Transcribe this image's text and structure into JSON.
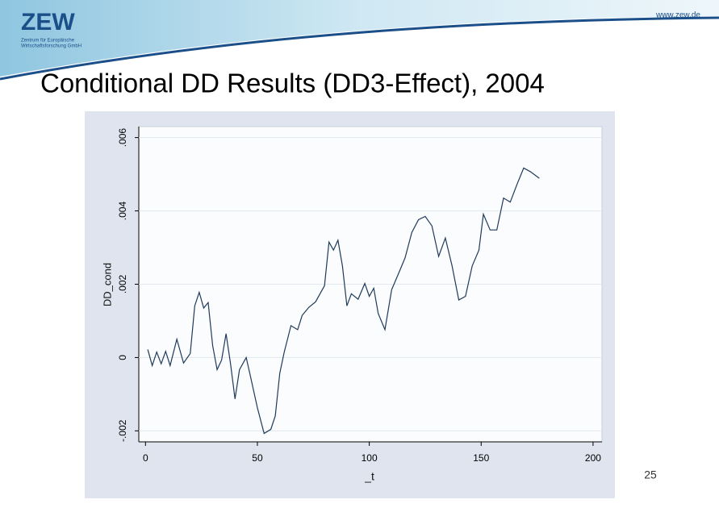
{
  "header": {
    "logo": "ZEW",
    "logo_subtitle": [
      "Zentrum für Europäische",
      "Wirtschaftsforschung GmbH"
    ],
    "url": "www.zew.de"
  },
  "page_number": "25",
  "chart_data": {
    "type": "line",
    "title": "Conditional DD Results (DD3-Effect), 2004",
    "x_label": "_t",
    "y_label": "DD_cond",
    "color": "#1f3a5a",
    "x": [
      1,
      3,
      5,
      7,
      9,
      11,
      14,
      17,
      20,
      22,
      24,
      26,
      28,
      30,
      32,
      34,
      36,
      38,
      40,
      42,
      45,
      47,
      50,
      53,
      56,
      58,
      60,
      62,
      65,
      68,
      70,
      73,
      76,
      80,
      82,
      84,
      86,
      88,
      90,
      92,
      95,
      98,
      100,
      102,
      104,
      107,
      110,
      113,
      116,
      119,
      122,
      125,
      128,
      131,
      134,
      137,
      140,
      143,
      146,
      149,
      151,
      154,
      157,
      160,
      163,
      166,
      169,
      172,
      176
    ],
    "values": [
      0.00022,
      -0.00022,
      0.00015,
      -0.00017,
      0.00017,
      -0.00022,
      0.0005,
      -0.00015,
      0.00011,
      0.00141,
      0.00178,
      0.00135,
      0.0015,
      0.00033,
      -0.00033,
      -7e-05,
      0.00065,
      -0.00017,
      -0.00113,
      -0.00033,
      0,
      -0.00054,
      -0.00137,
      -0.00207,
      -0.00196,
      -0.00159,
      -0.00043,
      0.00015,
      0.00087,
      0.00076,
      0.00115,
      0.00137,
      0.00152,
      0.00196,
      0.00315,
      0.00293,
      0.0032,
      0.0025,
      0.00141,
      0.00174,
      0.00159,
      0.00202,
      0.00167,
      0.00189,
      0.0012,
      0.00076,
      0.00185,
      0.00228,
      0.00272,
      0.00341,
      0.00376,
      0.00385,
      0.00359,
      0.00276,
      0.00326,
      0.0025,
      0.00157,
      0.00167,
      0.0025,
      0.00293,
      0.00391,
      0.00348,
      0.00348,
      0.00435,
      0.00424,
      0.00472,
      0.00517,
      0.00507,
      0.00489
    ],
    "xlim": [
      -3,
      204
    ],
    "ylim": [
      -0.0023,
      0.0063
    ],
    "xticks": [
      0,
      50,
      100,
      150,
      200
    ],
    "yticks": [
      {
        "value": -0.002,
        "label": "-.002"
      },
      {
        "value": 0,
        "label": "0"
      },
      {
        "value": 0.002,
        "label": ".002"
      },
      {
        "value": 0.004,
        "label": ".004"
      },
      {
        "value": 0.006,
        "label": ".006"
      }
    ],
    "grid": true
  }
}
